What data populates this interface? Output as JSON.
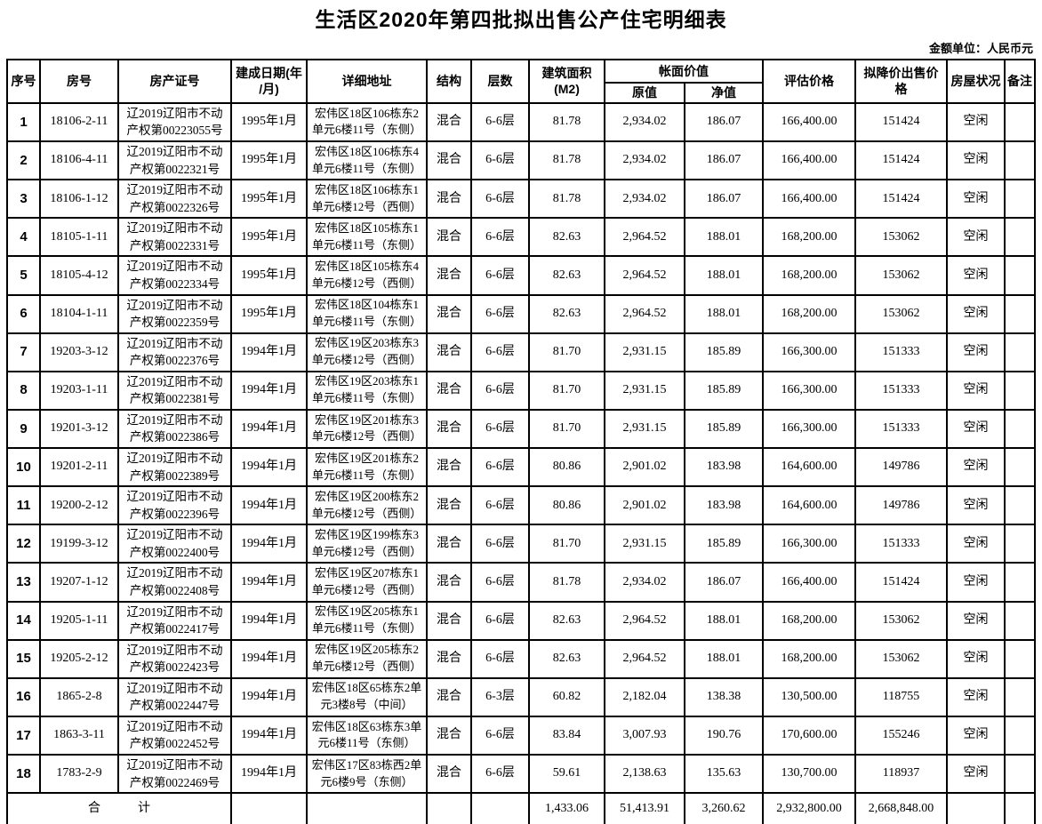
{
  "title": "生活区2020年第四批拟出售公产住宅明细表",
  "unit_note": "金额单位：人民币元",
  "table": {
    "columns": {
      "seq": "序号",
      "room_no": "房号",
      "cert_no": "房产证号",
      "build_date": "建成日期(年\n/月)",
      "address": "详细地址",
      "structure": "结构",
      "floors": "层数",
      "area": "建筑面积\n(M2)",
      "book_value_group": "帐面价值",
      "original_value": "原值",
      "net_value": "净值",
      "assessed_price": "评估价格",
      "reduced_price": "拟降价出售价格",
      "condition": "房屋状况",
      "remark": "备注"
    },
    "rows": [
      [
        "1",
        "18106-2-11",
        "辽2019辽阳市不动产权第00223055号",
        "1995年1月",
        "宏伟区18区106栋东2单元6楼11号（东侧）",
        "混合",
        "6-6层",
        "81.78",
        "2,934.02",
        "186.07",
        "166,400.00",
        "151424",
        "空闲",
        ""
      ],
      [
        "2",
        "18106-4-11",
        "辽2019辽阳市不动产权第0022321号",
        "1995年1月",
        "宏伟区18区106栋东4单元6楼11号（东侧）",
        "混合",
        "6-6层",
        "81.78",
        "2,934.02",
        "186.07",
        "166,400.00",
        "151424",
        "空闲",
        ""
      ],
      [
        "3",
        "18106-1-12",
        "辽2019辽阳市不动产权第0022326号",
        "1995年1月",
        "宏伟区18区106栋东1单元6楼12号（西侧）",
        "混合",
        "6-6层",
        "81.78",
        "2,934.02",
        "186.07",
        "166,400.00",
        "151424",
        "空闲",
        ""
      ],
      [
        "4",
        "18105-1-11",
        "辽2019辽阳市不动产权第0022331号",
        "1995年1月",
        "宏伟区18区105栋东1单元6楼11号（东侧）",
        "混合",
        "6-6层",
        "82.63",
        "2,964.52",
        "188.01",
        "168,200.00",
        "153062",
        "空闲",
        ""
      ],
      [
        "5",
        "18105-4-12",
        "辽2019辽阳市不动产权第0022334号",
        "1995年1月",
        "宏伟区18区105栋东4单元6楼12号（西侧）",
        "混合",
        "6-6层",
        "82.63",
        "2,964.52",
        "188.01",
        "168,200.00",
        "153062",
        "空闲",
        ""
      ],
      [
        "6",
        "18104-1-11",
        "辽2019辽阳市不动产权第0022359号",
        "1995年1月",
        "宏伟区18区104栋东1单元6楼11号（东侧）",
        "混合",
        "6-6层",
        "82.63",
        "2,964.52",
        "188.01",
        "168,200.00",
        "153062",
        "空闲",
        ""
      ],
      [
        "7",
        "19203-3-12",
        "辽2019辽阳市不动产权第0022376号",
        "1994年1月",
        "宏伟区19区203栋东3单元6楼12号（西侧）",
        "混合",
        "6-6层",
        "81.70",
        "2,931.15",
        "185.89",
        "166,300.00",
        "151333",
        "空闲",
        ""
      ],
      [
        "8",
        "19203-1-11",
        "辽2019辽阳市不动产权第0022381号",
        "1994年1月",
        "宏伟区19区203栋东1单元6楼11号（东侧）",
        "混合",
        "6-6层",
        "81.70",
        "2,931.15",
        "185.89",
        "166,300.00",
        "151333",
        "空闲",
        ""
      ],
      [
        "9",
        "19201-3-12",
        "辽2019辽阳市不动产权第0022386号",
        "1994年1月",
        "宏伟区19区201栋东3单元6楼12号（西侧）",
        "混合",
        "6-6层",
        "81.70",
        "2,931.15",
        "185.89",
        "166,300.00",
        "151333",
        "空闲",
        ""
      ],
      [
        "10",
        "19201-2-11",
        "辽2019辽阳市不动产权第0022389号",
        "1994年1月",
        "宏伟区19区201栋东2单元6楼11号（东侧）",
        "混合",
        "6-6层",
        "80.86",
        "2,901.02",
        "183.98",
        "164,600.00",
        "149786",
        "空闲",
        ""
      ],
      [
        "11",
        "19200-2-12",
        "辽2019辽阳市不动产权第0022396号",
        "1994年1月",
        "宏伟区19区200栋东2单元6楼12号（西侧）",
        "混合",
        "6-6层",
        "80.86",
        "2,901.02",
        "183.98",
        "164,600.00",
        "149786",
        "空闲",
        ""
      ],
      [
        "12",
        "19199-3-12",
        "辽2019辽阳市不动产权第0022400号",
        "1994年1月",
        "宏伟区19区199栋东3单元6楼12号（西侧）",
        "混合",
        "6-6层",
        "81.70",
        "2,931.15",
        "185.89",
        "166,300.00",
        "151333",
        "空闲",
        ""
      ],
      [
        "13",
        "19207-1-12",
        "辽2019辽阳市不动产权第0022408号",
        "1994年1月",
        "宏伟区19区207栋东1单元6楼12号（西侧）",
        "混合",
        "6-6层",
        "81.78",
        "2,934.02",
        "186.07",
        "166,400.00",
        "151424",
        "空闲",
        ""
      ],
      [
        "14",
        "19205-1-11",
        "辽2019辽阳市不动产权第0022417号",
        "1994年1月",
        "宏伟区19区205栋东1单元6楼11号（东侧）",
        "混合",
        "6-6层",
        "82.63",
        "2,964.52",
        "188.01",
        "168,200.00",
        "153062",
        "空闲",
        ""
      ],
      [
        "15",
        "19205-2-12",
        "辽2019辽阳市不动产权第0022423号",
        "1994年1月",
        "宏伟区19区205栋东2单元6楼12号（西侧）",
        "混合",
        "6-6层",
        "82.63",
        "2,964.52",
        "188.01",
        "168,200.00",
        "153062",
        "空闲",
        ""
      ],
      [
        "16",
        "1865-2-8",
        "辽2019辽阳市不动产权第0022447号",
        "1994年1月",
        "宏伟区18区65栋东2单元3楼8号（中间）",
        "混合",
        "6-3层",
        "60.82",
        "2,182.04",
        "138.38",
        "130,500.00",
        "118755",
        "空闲",
        ""
      ],
      [
        "17",
        "1863-3-11",
        "辽2019辽阳市不动产权第0022452号",
        "1994年1月",
        "宏伟区18区63栋东3单元6楼11号（东侧）",
        "混合",
        "6-6层",
        "83.84",
        "3,007.93",
        "190.76",
        "170,600.00",
        "155246",
        "空闲",
        ""
      ],
      [
        "18",
        "1783-2-9",
        "辽2019辽阳市不动产权第0022469号",
        "1994年1月",
        "宏伟区17区83栋西2单元6楼9号（东侧）",
        "混合",
        "6-6层",
        "59.61",
        "2,138.63",
        "135.63",
        "130,700.00",
        "118937",
        "空闲",
        ""
      ]
    ],
    "total_row": {
      "label": "合　　　计",
      "area": "1,433.06",
      "original_value": "51,413.91",
      "net_value": "3,260.62",
      "assessed_price": "2,932,800.00",
      "reduced_price": "2,668,848.00"
    }
  }
}
